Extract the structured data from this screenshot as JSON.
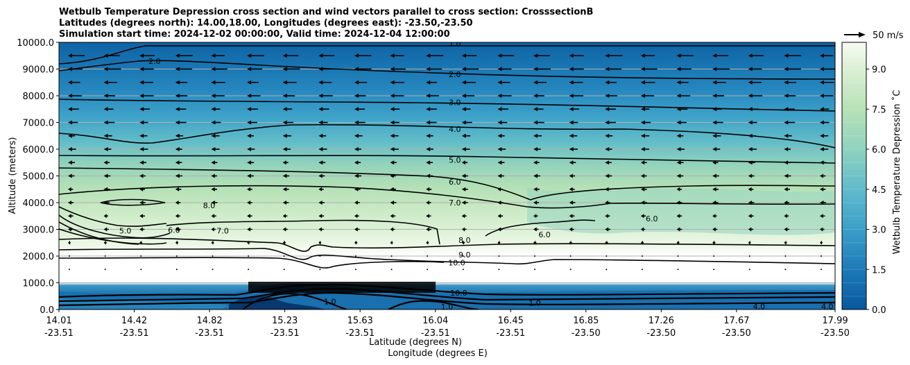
{
  "chart_data": {
    "type": "contour",
    "title_lines": [
      "Wetbulb Temperature Depression cross section and wind vectors parallel to cross section: CrosssectionB",
      "Latitudes (degrees north): 14.00,18.00, Longitudes (degrees east): -23.50,-23.50",
      "Simulation start time: 2024-12-02 00:00:00, Valid time: 2024-12-04 12:00:00"
    ],
    "xlabel": "Latitude (degrees N)",
    "xlabel2": "Longitude (degrees E)",
    "ylabel": "Altitude (meters)",
    "ylim": [
      0,
      10000
    ],
    "yticks": [
      "0.0",
      "1000.0",
      "2000.0",
      "3000.0",
      "4000.0",
      "5000.0",
      "6000.0",
      "7000.0",
      "8000.0",
      "9000.0",
      "10000.0"
    ],
    "xticks": [
      {
        "lat": "14.01",
        "lon": "-23.51"
      },
      {
        "lat": "14.42",
        "lon": "-23.51"
      },
      {
        "lat": "14.82",
        "lon": "-23.51"
      },
      {
        "lat": "15.23",
        "lon": "-23.51"
      },
      {
        "lat": "15.63",
        "lon": "-23.51"
      },
      {
        "lat": "16.04",
        "lon": "-23.51"
      },
      {
        "lat": "16.45",
        "lon": "-23.51"
      },
      {
        "lat": "16.85",
        "lon": "-23.50"
      },
      {
        "lat": "17.26",
        "lon": "-23.50"
      },
      {
        "lat": "17.67",
        "lon": "-23.50"
      },
      {
        "lat": "17.99",
        "lon": "-23.50"
      }
    ],
    "colorbar": {
      "label": "Wetbulb Temperature Depression ˚C",
      "min": 0,
      "max": 10,
      "step": 0.5,
      "ticks": [
        "0.0",
        "1.5",
        "3.0",
        "4.5",
        "6.0",
        "7.5",
        "9.0"
      ]
    },
    "quiver_key": "50 m/s",
    "contour_labels": [
      {
        "text": "1.0",
        "x": 16.04,
        "y": 9950
      },
      {
        "text": "2.0",
        "x": 14.5,
        "y": 9300
      },
      {
        "text": "2.0",
        "x": 16.04,
        "y": 8800
      },
      {
        "text": "3.0",
        "x": 16.04,
        "y": 7750
      },
      {
        "text": "4.0",
        "x": 16.04,
        "y": 6750
      },
      {
        "text": "5.0",
        "x": 16.04,
        "y": 5600
      },
      {
        "text": "6.0",
        "x": 16.04,
        "y": 4780
      },
      {
        "text": "7.0",
        "x": 16.04,
        "y": 4000
      },
      {
        "text": "8.0",
        "x": 14.78,
        "y": 3900
      },
      {
        "text": "5.0",
        "x": 14.35,
        "y": 2950
      },
      {
        "text": "6.0",
        "x": 14.6,
        "y": 2980
      },
      {
        "text": "7.0",
        "x": 14.85,
        "y": 2950
      },
      {
        "text": "8.0",
        "x": 16.09,
        "y": 2600
      },
      {
        "text": "9.0",
        "x": 16.09,
        "y": 2050
      },
      {
        "text": "10.0",
        "x": 16.05,
        "y": 1750
      },
      {
        "text": "6.0",
        "x": 16.5,
        "y": 2800
      },
      {
        "text": "6.0",
        "x": 17.05,
        "y": 3400
      },
      {
        "text": "10.0",
        "x": 16.06,
        "y": 620
      },
      {
        "text": "4.0",
        "x": 17.6,
        "y": 120
      },
      {
        "text": "4.0",
        "x": 17.95,
        "y": 120
      },
      {
        "text": "1.0",
        "x": 15.4,
        "y": 300
      },
      {
        "text": "1.0",
        "x": 16.0,
        "y": 100
      },
      {
        "text": "1.0",
        "x": 16.45,
        "y": 250
      }
    ]
  }
}
